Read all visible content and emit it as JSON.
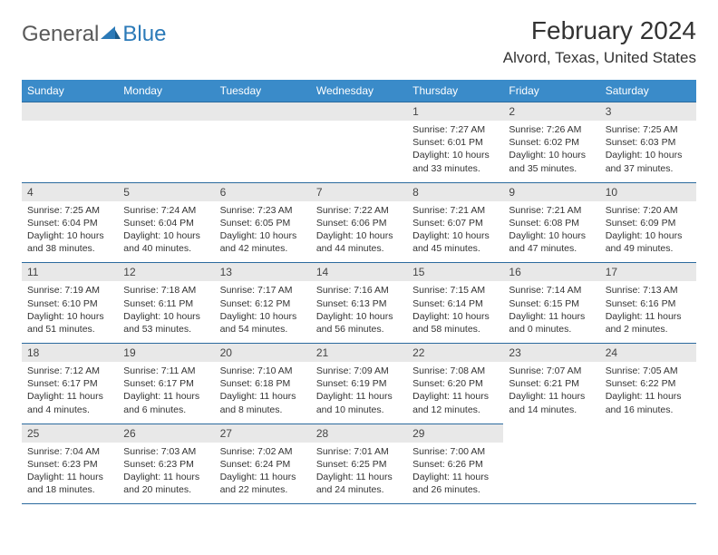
{
  "logo": {
    "text_gray": "General",
    "text_blue": "Blue"
  },
  "title": "February 2024",
  "location": "Alvord, Texas, United States",
  "colors": {
    "header_bg": "#3a8bc9",
    "header_text": "#ffffff",
    "daynum_bg": "#e8e8e8",
    "border": "#2b6a9e",
    "logo_gray": "#5a5a5a",
    "logo_blue": "#2b7ab8",
    "text": "#333333"
  },
  "days_of_week": [
    "Sunday",
    "Monday",
    "Tuesday",
    "Wednesday",
    "Thursday",
    "Friday",
    "Saturday"
  ],
  "first_day_index": 4,
  "days": [
    {
      "n": "1",
      "sunrise": "7:27 AM",
      "sunset": "6:01 PM",
      "daylight": "10 hours and 33 minutes."
    },
    {
      "n": "2",
      "sunrise": "7:26 AM",
      "sunset": "6:02 PM",
      "daylight": "10 hours and 35 minutes."
    },
    {
      "n": "3",
      "sunrise": "7:25 AM",
      "sunset": "6:03 PM",
      "daylight": "10 hours and 37 minutes."
    },
    {
      "n": "4",
      "sunrise": "7:25 AM",
      "sunset": "6:04 PM",
      "daylight": "10 hours and 38 minutes."
    },
    {
      "n": "5",
      "sunrise": "7:24 AM",
      "sunset": "6:04 PM",
      "daylight": "10 hours and 40 minutes."
    },
    {
      "n": "6",
      "sunrise": "7:23 AM",
      "sunset": "6:05 PM",
      "daylight": "10 hours and 42 minutes."
    },
    {
      "n": "7",
      "sunrise": "7:22 AM",
      "sunset": "6:06 PM",
      "daylight": "10 hours and 44 minutes."
    },
    {
      "n": "8",
      "sunrise": "7:21 AM",
      "sunset": "6:07 PM",
      "daylight": "10 hours and 45 minutes."
    },
    {
      "n": "9",
      "sunrise": "7:21 AM",
      "sunset": "6:08 PM",
      "daylight": "10 hours and 47 minutes."
    },
    {
      "n": "10",
      "sunrise": "7:20 AM",
      "sunset": "6:09 PM",
      "daylight": "10 hours and 49 minutes."
    },
    {
      "n": "11",
      "sunrise": "7:19 AM",
      "sunset": "6:10 PM",
      "daylight": "10 hours and 51 minutes."
    },
    {
      "n": "12",
      "sunrise": "7:18 AM",
      "sunset": "6:11 PM",
      "daylight": "10 hours and 53 minutes."
    },
    {
      "n": "13",
      "sunrise": "7:17 AM",
      "sunset": "6:12 PM",
      "daylight": "10 hours and 54 minutes."
    },
    {
      "n": "14",
      "sunrise": "7:16 AM",
      "sunset": "6:13 PM",
      "daylight": "10 hours and 56 minutes."
    },
    {
      "n": "15",
      "sunrise": "7:15 AM",
      "sunset": "6:14 PM",
      "daylight": "10 hours and 58 minutes."
    },
    {
      "n": "16",
      "sunrise": "7:14 AM",
      "sunset": "6:15 PM",
      "daylight": "11 hours and 0 minutes."
    },
    {
      "n": "17",
      "sunrise": "7:13 AM",
      "sunset": "6:16 PM",
      "daylight": "11 hours and 2 minutes."
    },
    {
      "n": "18",
      "sunrise": "7:12 AM",
      "sunset": "6:17 PM",
      "daylight": "11 hours and 4 minutes."
    },
    {
      "n": "19",
      "sunrise": "7:11 AM",
      "sunset": "6:17 PM",
      "daylight": "11 hours and 6 minutes."
    },
    {
      "n": "20",
      "sunrise": "7:10 AM",
      "sunset": "6:18 PM",
      "daylight": "11 hours and 8 minutes."
    },
    {
      "n": "21",
      "sunrise": "7:09 AM",
      "sunset": "6:19 PM",
      "daylight": "11 hours and 10 minutes."
    },
    {
      "n": "22",
      "sunrise": "7:08 AM",
      "sunset": "6:20 PM",
      "daylight": "11 hours and 12 minutes."
    },
    {
      "n": "23",
      "sunrise": "7:07 AM",
      "sunset": "6:21 PM",
      "daylight": "11 hours and 14 minutes."
    },
    {
      "n": "24",
      "sunrise": "7:05 AM",
      "sunset": "6:22 PM",
      "daylight": "11 hours and 16 minutes."
    },
    {
      "n": "25",
      "sunrise": "7:04 AM",
      "sunset": "6:23 PM",
      "daylight": "11 hours and 18 minutes."
    },
    {
      "n": "26",
      "sunrise": "7:03 AM",
      "sunset": "6:23 PM",
      "daylight": "11 hours and 20 minutes."
    },
    {
      "n": "27",
      "sunrise": "7:02 AM",
      "sunset": "6:24 PM",
      "daylight": "11 hours and 22 minutes."
    },
    {
      "n": "28",
      "sunrise": "7:01 AM",
      "sunset": "6:25 PM",
      "daylight": "11 hours and 24 minutes."
    },
    {
      "n": "29",
      "sunrise": "7:00 AM",
      "sunset": "6:26 PM",
      "daylight": "11 hours and 26 minutes."
    }
  ],
  "labels": {
    "sunrise": "Sunrise: ",
    "sunset": "Sunset: ",
    "daylight": "Daylight: "
  }
}
